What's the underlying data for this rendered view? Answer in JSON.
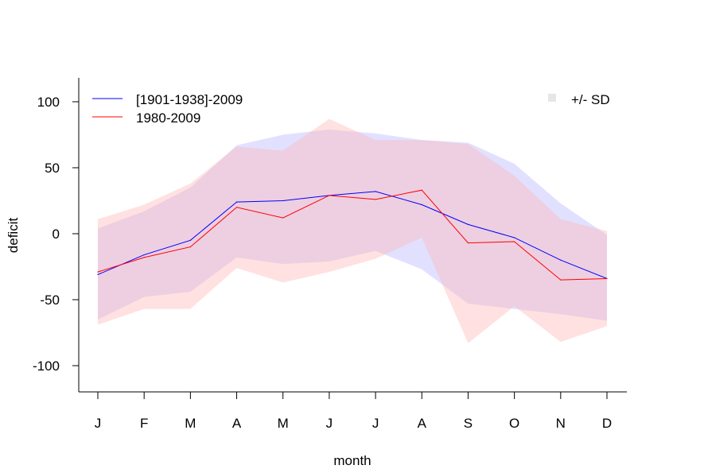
{
  "chart_data": {
    "type": "line",
    "xlabel": "month",
    "ylabel": "deficit",
    "categories": [
      "J",
      "F",
      "M",
      "A",
      "M",
      "J",
      "J",
      "A",
      "S",
      "O",
      "N",
      "D"
    ],
    "ylim": [
      -120,
      120
    ],
    "yticks": [
      -100,
      -50,
      0,
      50,
      100
    ],
    "grid": false,
    "legend_position": "top-left",
    "series": [
      {
        "name": "[1901-1938]-2009",
        "color": "#0000ff",
        "values": [
          -31,
          -16,
          -5,
          24,
          25,
          29,
          32,
          22,
          7,
          -3,
          -20,
          -34
        ],
        "sd_upper": [
          4,
          17,
          35,
          67,
          75,
          79,
          76,
          71,
          69,
          53,
          23,
          -1
        ],
        "sd_lower": [
          -65,
          -48,
          -44,
          -18,
          -23,
          -21,
          -13,
          -27,
          -53,
          -57,
          -61,
          -66
        ],
        "band_color": "#b3b3ff"
      },
      {
        "name": "1980-2009",
        "color": "#ff0000",
        "values": [
          -29,
          -18,
          -10,
          20,
          12,
          29,
          26,
          33,
          -7,
          -6,
          -35,
          -34
        ],
        "sd_upper": [
          11,
          22,
          38,
          66,
          63,
          87,
          71,
          71,
          68,
          44,
          11,
          2
        ],
        "sd_lower": [
          -69,
          -57,
          -57,
          -26,
          -37,
          -29,
          -19,
          -3,
          -83,
          -55,
          -82,
          -70
        ],
        "band_color": "#ffb3b3"
      }
    ],
    "sd_legend": {
      "label": "+/- SD",
      "color": "#e6e6e6",
      "position": "top-right"
    }
  }
}
